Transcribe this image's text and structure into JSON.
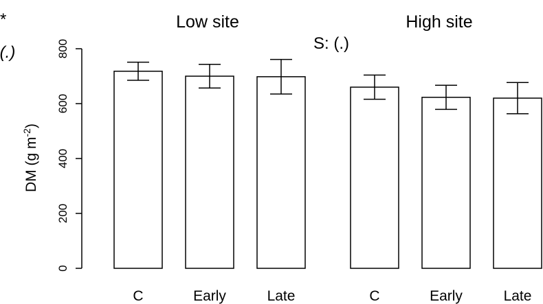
{
  "chart_data": {
    "type": "bar",
    "ylabel": "DM (g m",
    "ylabel_sup": "-2",
    "ylabel_close": ")",
    "ylim": [
      0,
      800
    ],
    "yticks": [
      0,
      200,
      400,
      600,
      800
    ],
    "grid": false,
    "annotations": {
      "top_left_star": "*",
      "top_left_paren": "(.)",
      "stats": "S: (.)"
    },
    "panels": [
      {
        "title": "Low site",
        "categories": [
          "C",
          "Early",
          "Late"
        ],
        "values": [
          718,
          700,
          698
        ],
        "errors": [
          33,
          43,
          63
        ]
      },
      {
        "title": "High site",
        "categories": [
          "C",
          "Early",
          "Late"
        ],
        "values": [
          660,
          623,
          620
        ],
        "errors": [
          44,
          44,
          57
        ]
      }
    ]
  },
  "colors": {
    "bar_fill": "#ffffff",
    "stroke": "#000000"
  }
}
